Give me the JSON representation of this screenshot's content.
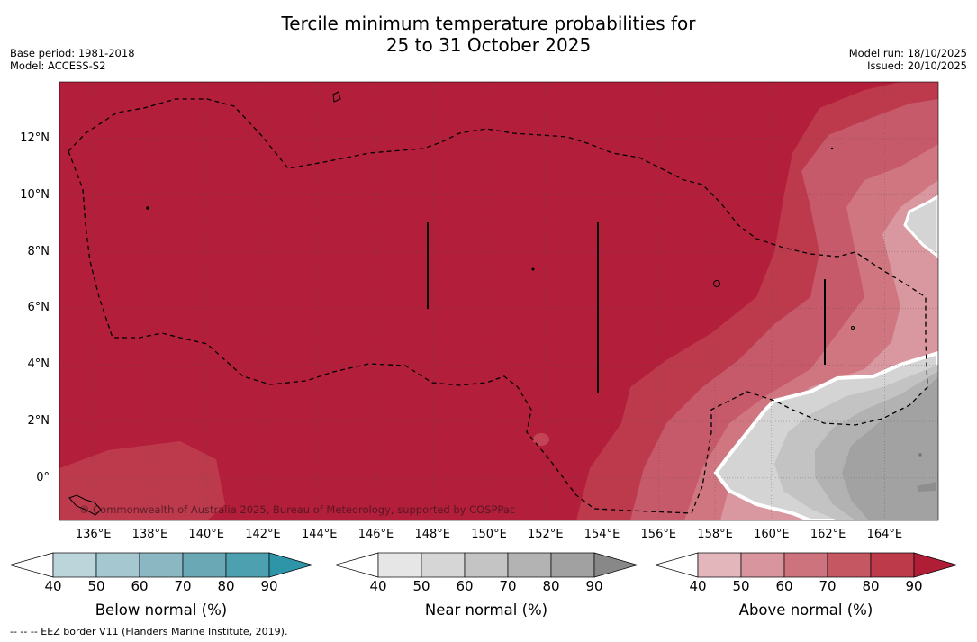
{
  "title_line1": "Tercile minimum temperature probabilities for",
  "title_line2": "25 to 31 October 2025",
  "base_period": "Base period: 1981-2018",
  "model": "Model: ACCESS-S2",
  "model_run": "Model run: 18/10/2025",
  "issued": "Issued: 20/10/2025",
  "copyright": "© Commonwealth of Australia 2025, Bureau of Meteorology, supported by COSPPac",
  "eez_note": "-- -- -- EEZ border V11 (Flanders Marine Institute, 2019).",
  "map": {
    "lon_range": [
      134.8,
      165.9
    ],
    "lat_range": [
      -1.5,
      14.0
    ],
    "lat_ticks": [
      "12°N",
      "10°N",
      "8°N",
      "6°N",
      "4°N",
      "2°N",
      "0°"
    ],
    "lon_ticks": [
      "136°E",
      "138°E",
      "140°E",
      "142°E",
      "144°E",
      "146°E",
      "148°E",
      "150°E",
      "152°E",
      "154°E",
      "156°E",
      "158°E",
      "160°E",
      "162°E",
      "164°E"
    ],
    "dominant_category": "Above normal",
    "dominant_probability": "90+"
  },
  "colorbars": [
    {
      "label": "Below normal (%)",
      "ticks": [
        "40",
        "50",
        "60",
        "70",
        "80",
        "90"
      ],
      "colors": [
        "#bcd5db",
        "#a5c7cf",
        "#8ab7c2",
        "#6aa8b6",
        "#4da0b0",
        "#2e95a8"
      ]
    },
    {
      "label": "Near normal (%)",
      "ticks": [
        "40",
        "50",
        "60",
        "70",
        "80",
        "90"
      ],
      "colors": [
        "#e6e6e6",
        "#d6d6d6",
        "#c4c4c4",
        "#b3b3b3",
        "#a1a1a1",
        "#888888"
      ]
    },
    {
      "label": "Above normal (%)",
      "ticks": [
        "40",
        "50",
        "60",
        "70",
        "80",
        "90"
      ],
      "colors": [
        "#e2b6bb",
        "#d8959d",
        "#cc737e",
        "#c45762",
        "#bc3a4a",
        "#b01d37"
      ]
    }
  ],
  "colors": {
    "above90": "#b31e3a",
    "above80": "#bd3a4c",
    "above70": "#c6596a",
    "above60": "#cf7681",
    "above50": "#d9979f",
    "near50": "#d4d4d4",
    "near60": "#c3c3c3",
    "near70": "#b2b2b2",
    "near80": "#a2a2a2",
    "near90": "#8e8e8e"
  }
}
